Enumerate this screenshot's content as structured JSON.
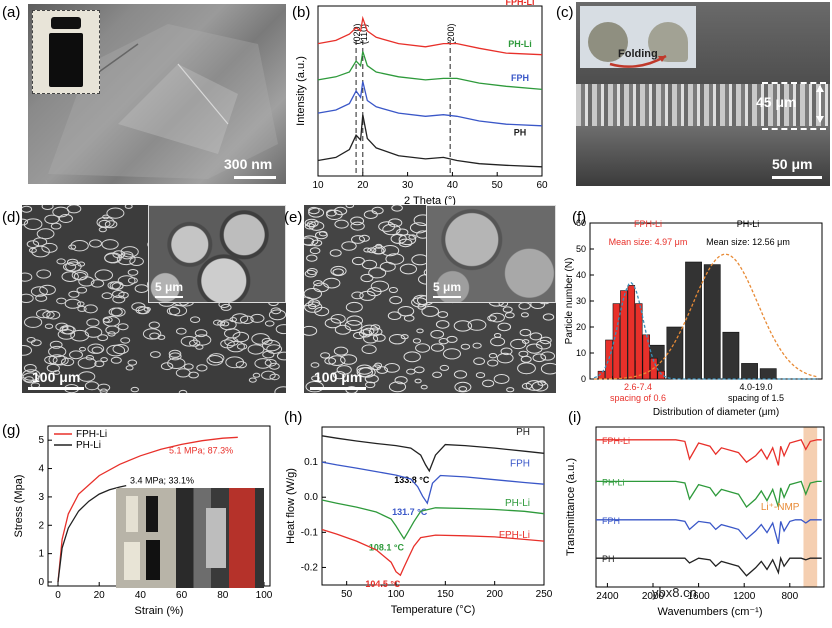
{
  "panels": {
    "a": {
      "label": "(a)",
      "scale": "300 nm"
    },
    "b": {
      "label": "(b)"
    },
    "c": {
      "label": "(c)",
      "folding": "Folding",
      "thickness": "45 μm",
      "scale": "50 μm"
    },
    "d": {
      "label": "(d)",
      "inset_scale": "5 μm",
      "scale": "100 μm"
    },
    "e": {
      "label": "(e)",
      "inset_scale": "5 μm",
      "scale": "100 μm"
    },
    "f": {
      "label": "(f)"
    },
    "g": {
      "label": "(g)"
    },
    "h": {
      "label": "(h)"
    },
    "i": {
      "label": "(i)"
    }
  },
  "watermark": "ybx8.cn",
  "colors": {
    "red": "#e8302a",
    "green": "#2e9a3b",
    "blue": "#3a57c8",
    "black": "#222222",
    "orange": "#e88a35",
    "highlight": "#f3c39e"
  },
  "chart_data": [
    {
      "id": "b",
      "type": "line",
      "xlabel": "2 Theta (°)",
      "ylabel": "Intensity (a.u.)",
      "xlim": [
        10,
        60
      ],
      "xticks": [
        10,
        20,
        30,
        40,
        50,
        60
      ],
      "annotations": [
        "(020)",
        "(110)",
        "(200)"
      ],
      "annotation_x": [
        18.5,
        20,
        39.5
      ],
      "series": [
        {
          "name": "FPH-Li",
          "color": "#e8302a",
          "x": [
            10,
            14,
            17,
            18.5,
            19.5,
            20,
            21,
            23,
            28,
            34,
            38,
            41,
            46,
            52,
            60
          ],
          "y": [
            0.8,
            0.82,
            0.86,
            0.9,
            0.88,
            0.96,
            0.88,
            0.84,
            0.8,
            0.78,
            0.8,
            0.8,
            0.77,
            0.74,
            0.73
          ]
        },
        {
          "name": "PH-Li",
          "color": "#2e9a3b",
          "x": [
            10,
            14,
            17,
            18.5,
            19.5,
            20,
            21,
            23,
            28,
            34,
            38,
            41,
            46,
            52,
            60
          ],
          "y": [
            0.57,
            0.59,
            0.62,
            0.69,
            0.66,
            0.75,
            0.66,
            0.62,
            0.59,
            0.57,
            0.58,
            0.58,
            0.55,
            0.53,
            0.51
          ]
        },
        {
          "name": "FPH",
          "color": "#3a57c8",
          "x": [
            10,
            14,
            17,
            18.5,
            19.5,
            20,
            21,
            23,
            28,
            34,
            38,
            41,
            46,
            52,
            60
          ],
          "y": [
            0.36,
            0.38,
            0.42,
            0.5,
            0.46,
            0.56,
            0.44,
            0.4,
            0.36,
            0.34,
            0.35,
            0.34,
            0.31,
            0.29,
            0.28
          ]
        },
        {
          "name": "PH",
          "color": "#222222",
          "x": [
            10,
            14,
            17,
            18.5,
            19.5,
            20,
            21,
            23,
            28,
            34,
            38,
            41,
            46,
            52,
            60
          ],
          "y": [
            0.06,
            0.08,
            0.13,
            0.22,
            0.19,
            0.35,
            0.2,
            0.14,
            0.09,
            0.07,
            0.08,
            0.06,
            0.04,
            0.03,
            0.02
          ]
        }
      ]
    },
    {
      "id": "f",
      "type": "bar",
      "xlabel": "Distribution of diameter (μm)",
      "ylabel": "Particle number (N)",
      "ylim": [
        0,
        60
      ],
      "yticks": [
        0,
        10,
        20,
        30,
        40,
        50,
        60
      ],
      "xlim": [
        2,
        20
      ],
      "series": [
        {
          "name": "FPH-Li",
          "color": "#e8302a",
          "x": [
            2.6,
            3.2,
            3.8,
            4.4,
            5.0,
            5.6,
            6.2,
            6.8,
            7.4
          ],
          "values": [
            3,
            15,
            29,
            34,
            36,
            29,
            17,
            8,
            3
          ],
          "bar_width": 0.55
        },
        {
          "name": "PH-Li",
          "color": "#333333",
          "x": [
            4.0,
            5.5,
            7.0,
            8.5,
            10.0,
            11.5,
            13.0,
            14.5,
            16.0,
            17.5,
            19.0
          ],
          "values": [
            1,
            7,
            13,
            20,
            45,
            44,
            18,
            6,
            4,
            0,
            0
          ],
          "bar_width": 1.3
        }
      ],
      "fit_curves": [
        {
          "name": "FPH-Li fit",
          "color": "#3b8fb8",
          "center": 4.97,
          "sigma": 1.0,
          "peak": 37
        },
        {
          "name": "PH-Li fit",
          "color": "#e88a35",
          "center": 12.56,
          "sigma": 2.6,
          "peak": 48
        }
      ],
      "annotations": {
        "fph_name": "FPH-Li",
        "fph_size": "Mean size: 4.97 μm",
        "ph_name": "PH-Li",
        "ph_size": "Mean size: 12.56 μm",
        "fph_range": "2.6-7.4",
        "fph_spacing": "spacing of 0.6",
        "ph_range": "4.0-19.0",
        "ph_spacing": "spacing of 1.5"
      }
    },
    {
      "id": "g",
      "type": "line",
      "xlabel": "Strain (%)",
      "ylabel": "Stress (Mpa)",
      "xlim": [
        0,
        100
      ],
      "ylim": [
        0,
        5.5
      ],
      "xticks": [
        0,
        20,
        40,
        60,
        80,
        100
      ],
      "yticks": [
        0,
        1,
        2,
        3,
        4,
        5
      ],
      "series": [
        {
          "name": "FPH-Li",
          "color": "#e8302a",
          "x": [
            0,
            2,
            5,
            10,
            20,
            30,
            40,
            50,
            60,
            70,
            80,
            87.3
          ],
          "y": [
            0,
            1.5,
            2.4,
            3.1,
            3.75,
            4.15,
            4.45,
            4.68,
            4.85,
            4.98,
            5.07,
            5.1
          ]
        },
        {
          "name": "PH-Li",
          "color": "#222222",
          "x": [
            0,
            2,
            5,
            10,
            15,
            20,
            25,
            30,
            33.1
          ],
          "y": [
            0,
            1.2,
            1.9,
            2.5,
            2.85,
            3.1,
            3.25,
            3.35,
            3.4
          ]
        }
      ],
      "annotations": [
        "5.1 MPa; 87.3%",
        "3.4 MPa; 33.1%"
      ]
    },
    {
      "id": "h",
      "type": "line",
      "xlabel": "Temperature (°C)",
      "ylabel": "Heat flow (W/g)",
      "xlim": [
        25,
        250
      ],
      "ylim": [
        -0.25,
        0.2
      ],
      "xticks": [
        50,
        100,
        150,
        200,
        250
      ],
      "yticks": [
        -0.2,
        -0.1,
        0.0,
        0.1
      ],
      "series": [
        {
          "name": "PH",
          "color": "#222222",
          "x": [
            25,
            40,
            60,
            80,
            100,
            115,
            125,
            130,
            133.8,
            140,
            150,
            170,
            200,
            230,
            250
          ],
          "y": [
            0.175,
            0.168,
            0.16,
            0.153,
            0.147,
            0.14,
            0.12,
            0.092,
            0.075,
            0.12,
            0.15,
            0.147,
            0.14,
            0.131,
            0.125
          ]
        },
        {
          "name": "FPH",
          "color": "#3a57c8",
          "x": [
            25,
            40,
            60,
            80,
            100,
            115,
            122,
            127,
            131.7,
            137,
            145,
            170,
            200,
            230,
            250
          ],
          "y": [
            0.1,
            0.092,
            0.083,
            0.073,
            0.063,
            0.052,
            0.03,
            0.003,
            -0.017,
            0.04,
            0.062,
            0.058,
            0.05,
            0.042,
            0.037
          ]
        },
        {
          "name": "PH-Li",
          "color": "#2e9a3b",
          "x": [
            25,
            40,
            60,
            80,
            95,
            100,
            104,
            108.1,
            112,
            118,
            125,
            140,
            170,
            200,
            230,
            250
          ],
          "y": [
            -0.008,
            -0.017,
            -0.028,
            -0.042,
            -0.062,
            -0.082,
            -0.1,
            -0.118,
            -0.1,
            -0.07,
            -0.04,
            -0.03,
            -0.032,
            -0.035,
            -0.04,
            -0.047
          ]
        },
        {
          "name": "FPH-Li",
          "color": "#e8302a",
          "x": [
            25,
            40,
            60,
            80,
            95,
            100,
            104.5,
            108,
            113,
            118,
            125,
            140,
            170,
            200,
            230,
            250
          ],
          "y": [
            -0.092,
            -0.105,
            -0.125,
            -0.15,
            -0.185,
            -0.212,
            -0.222,
            -0.2,
            -0.17,
            -0.14,
            -0.115,
            -0.108,
            -0.11,
            -0.113,
            -0.12,
            -0.125
          ]
        }
      ],
      "annotations": [
        "133.8 °C",
        "131.7 °C",
        "108.1 °C",
        "104.5 °C"
      ]
    },
    {
      "id": "i",
      "type": "line",
      "xlabel": "Wavenumbers (cm⁻¹)",
      "ylabel": "Transmittance (a.u.)",
      "xlim": [
        2500,
        500
      ],
      "xticks": [
        2400,
        2000,
        1600,
        1200,
        800
      ],
      "highlight_range": [
        680,
        560
      ],
      "highlight_label": "Li⁺-NMP",
      "series": [
        {
          "name": "FPH-Li",
          "color": "#e8302a",
          "x": [
            2500,
            2100,
            1900,
            1800,
            1720,
            1680,
            1600,
            1500,
            1450,
            1400,
            1300,
            1250,
            1180,
            1100,
            1050,
            1000,
            950,
            900,
            880,
            850,
            800,
            750,
            700,
            660,
            620,
            560,
            520
          ],
          "y": [
            0.92,
            0.92,
            0.92,
            0.92,
            0.91,
            0.8,
            0.9,
            0.88,
            0.83,
            0.87,
            0.85,
            0.84,
            0.78,
            0.82,
            0.86,
            0.8,
            0.87,
            0.76,
            0.88,
            0.82,
            0.9,
            0.91,
            0.92,
            0.86,
            0.91,
            0.92,
            0.92
          ]
        },
        {
          "name": "PH-Li",
          "color": "#2e9a3b",
          "x": [
            2500,
            2100,
            1900,
            1800,
            1720,
            1680,
            1600,
            1500,
            1450,
            1400,
            1300,
            1250,
            1180,
            1100,
            1050,
            1000,
            950,
            900,
            880,
            850,
            800,
            750,
            700,
            660,
            620,
            560,
            520
          ],
          "y": [
            0.66,
            0.66,
            0.66,
            0.66,
            0.65,
            0.55,
            0.64,
            0.62,
            0.57,
            0.61,
            0.59,
            0.58,
            0.5,
            0.55,
            0.6,
            0.54,
            0.61,
            0.5,
            0.62,
            0.56,
            0.64,
            0.65,
            0.66,
            0.58,
            0.65,
            0.66,
            0.66
          ]
        },
        {
          "name": "FPH",
          "color": "#3a57c8",
          "x": [
            2500,
            2100,
            1900,
            1800,
            1720,
            1680,
            1600,
            1500,
            1450,
            1400,
            1300,
            1250,
            1180,
            1100,
            1050,
            1000,
            950,
            900,
            880,
            850,
            800,
            750,
            700,
            660,
            620,
            560,
            520
          ],
          "y": [
            0.42,
            0.42,
            0.42,
            0.42,
            0.41,
            0.36,
            0.41,
            0.4,
            0.36,
            0.39,
            0.37,
            0.36,
            0.3,
            0.35,
            0.39,
            0.34,
            0.4,
            0.27,
            0.41,
            0.35,
            0.41,
            0.42,
            0.42,
            0.4,
            0.42,
            0.42,
            0.42
          ]
        },
        {
          "name": "PH",
          "color": "#222222",
          "x": [
            2500,
            2100,
            1900,
            1800,
            1720,
            1680,
            1600,
            1500,
            1450,
            1400,
            1300,
            1250,
            1180,
            1100,
            1050,
            1000,
            950,
            900,
            880,
            850,
            800,
            750,
            700,
            660,
            620,
            560,
            520
          ],
          "y": [
            0.18,
            0.18,
            0.18,
            0.18,
            0.18,
            0.15,
            0.18,
            0.17,
            0.13,
            0.16,
            0.14,
            0.13,
            0.07,
            0.12,
            0.16,
            0.11,
            0.17,
            0.09,
            0.18,
            0.13,
            0.18,
            0.18,
            0.18,
            0.17,
            0.18,
            0.18,
            0.18
          ]
        }
      ]
    }
  ]
}
